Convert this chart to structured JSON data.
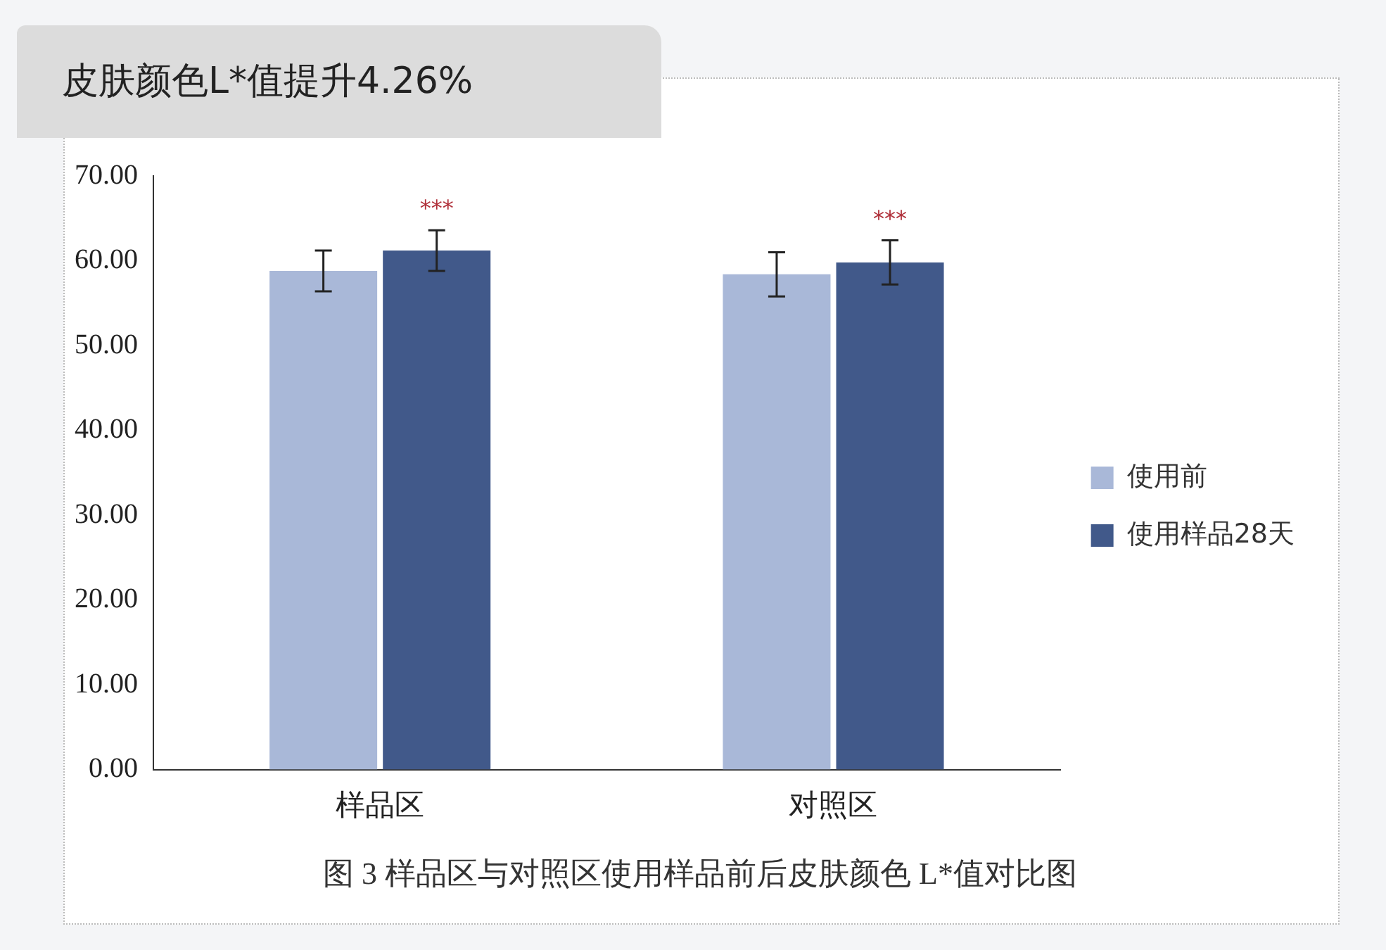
{
  "chart_data": {
    "type": "bar",
    "title": "皮肤颜色L*值提升4.26%",
    "categories": [
      "样品区",
      "对照区"
    ],
    "series": [
      {
        "name": "使用前",
        "color": "#a9b8d8",
        "values": [
          58.8,
          58.4
        ],
        "errors": [
          2.4,
          2.6
        ]
      },
      {
        "name": "使用样品28天",
        "color": "#41598a",
        "values": [
          61.2,
          59.8
        ],
        "errors": [
          2.4,
          2.6
        ]
      }
    ],
    "ylim": [
      0,
      70
    ],
    "yticks": [
      {
        "value": 0,
        "label": "0.00"
      },
      {
        "value": 10,
        "label": "10.00"
      },
      {
        "value": 20,
        "label": "20.00"
      },
      {
        "value": 30,
        "label": "30.00"
      },
      {
        "value": 40,
        "label": "40.00"
      },
      {
        "value": 50,
        "label": "50.00"
      },
      {
        "value": 60,
        "label": "60.00"
      },
      {
        "value": 70,
        "label": "70.00"
      }
    ],
    "grid": false,
    "legend": "right",
    "annotations": [
      "***",
      "***",
      "图 3  样品区与对照区使用样品前后皮肤颜色 L*值对比图"
    ]
  }
}
